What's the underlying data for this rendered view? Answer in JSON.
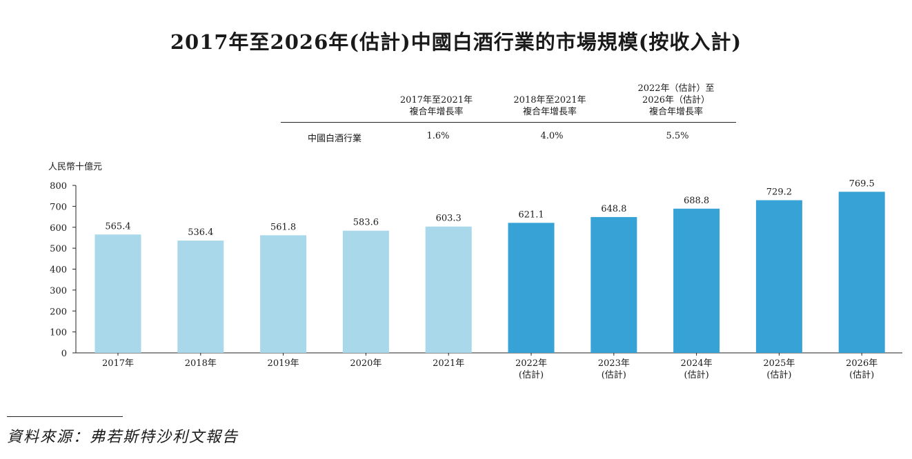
{
  "title": "2017年至2026年(估計)中國白酒行業的市場規模(按收入計)",
  "cagr_table": {
    "headers": [
      "2017年至2021年\n複合年增長率",
      "2018年至2021年\n複合年增長率",
      "2022年（估計）至\n2026年（估計）\n複合年增長率"
    ],
    "row_label": "中國白酒行業",
    "values": [
      "1.6%",
      "4.0%",
      "5.5%"
    ]
  },
  "chart_data": {
    "type": "bar",
    "title": "2017年至2026年(估計)中國白酒行業的市場規模(按收入計)",
    "ylabel": "人民幣十億元",
    "xlabel": "",
    "ylim": [
      0,
      800
    ],
    "yticks": [
      0,
      100,
      200,
      300,
      400,
      500,
      600,
      700,
      800
    ],
    "categories": [
      "2017年",
      "2018年",
      "2019年",
      "2020年",
      "2021年",
      "2022年\n(估計)",
      "2023年\n(估計)",
      "2024年\n(估計)",
      "2025年\n(估計)",
      "2026年\n(估計)"
    ],
    "values": [
      565.4,
      536.4,
      561.8,
      583.6,
      603.3,
      621.1,
      648.8,
      688.8,
      729.2,
      769.5
    ],
    "value_labels": [
      "565.4",
      "536.4",
      "561.8",
      "583.6",
      "603.3",
      "621.1",
      "648.8",
      "688.8",
      "729.2",
      "769.5"
    ],
    "colors": [
      "#a8d8ea",
      "#a8d8ea",
      "#a8d8ea",
      "#a8d8ea",
      "#a8d8ea",
      "#36a2d6",
      "#36a2d6",
      "#36a2d6",
      "#36a2d6",
      "#36a2d6"
    ],
    "grid": false
  },
  "source": "資料來源：弗若斯特沙利文報告"
}
